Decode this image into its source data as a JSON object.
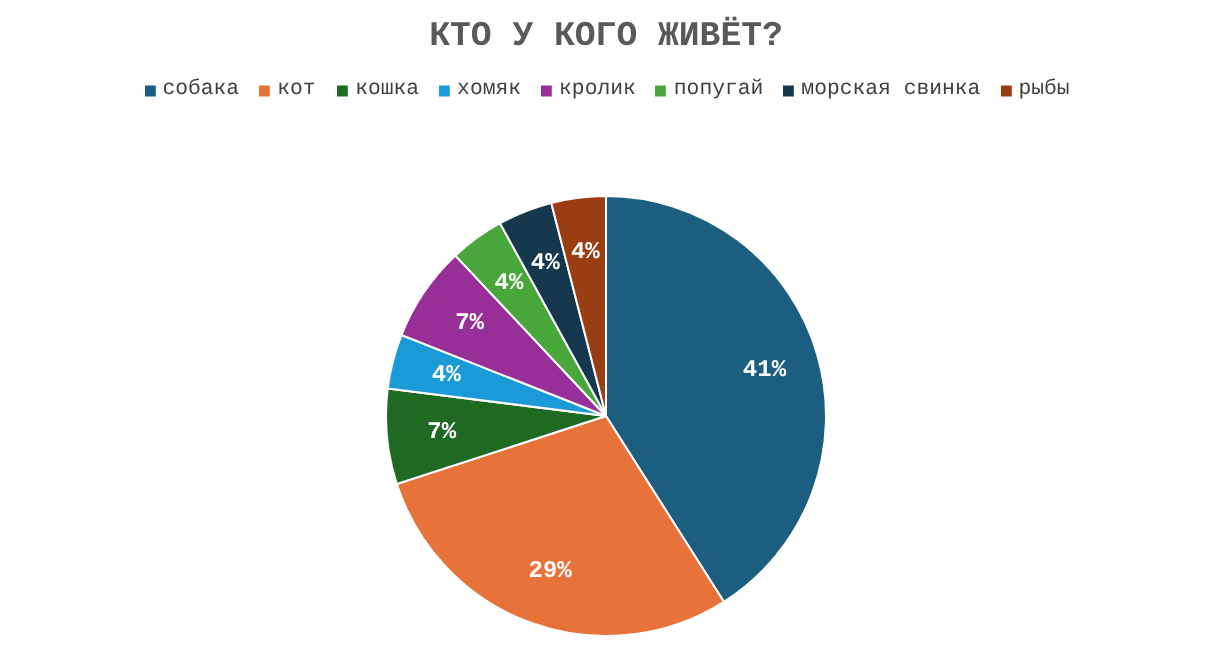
{
  "chart_data": {
    "type": "pie",
    "title": "КТО У КОГО ЖИВЁТ?",
    "categories": [
      "собака",
      "кот",
      "кошка",
      "хомяк",
      "кролик",
      "попугай",
      "морская свинка",
      "рыбы"
    ],
    "values": [
      41,
      29,
      7,
      4,
      7,
      4,
      4,
      4
    ],
    "value_labels": [
      "41%",
      "29%",
      "7%",
      "4%",
      "7%",
      "4%",
      "4%",
      "4%"
    ],
    "colors": [
      "#1b5e7f",
      "#e8733a",
      "#1e6a23",
      "#1a9ad6",
      "#982f98",
      "#48a63a",
      "#15384f",
      "#9b3d12"
    ],
    "legend": "top"
  }
}
